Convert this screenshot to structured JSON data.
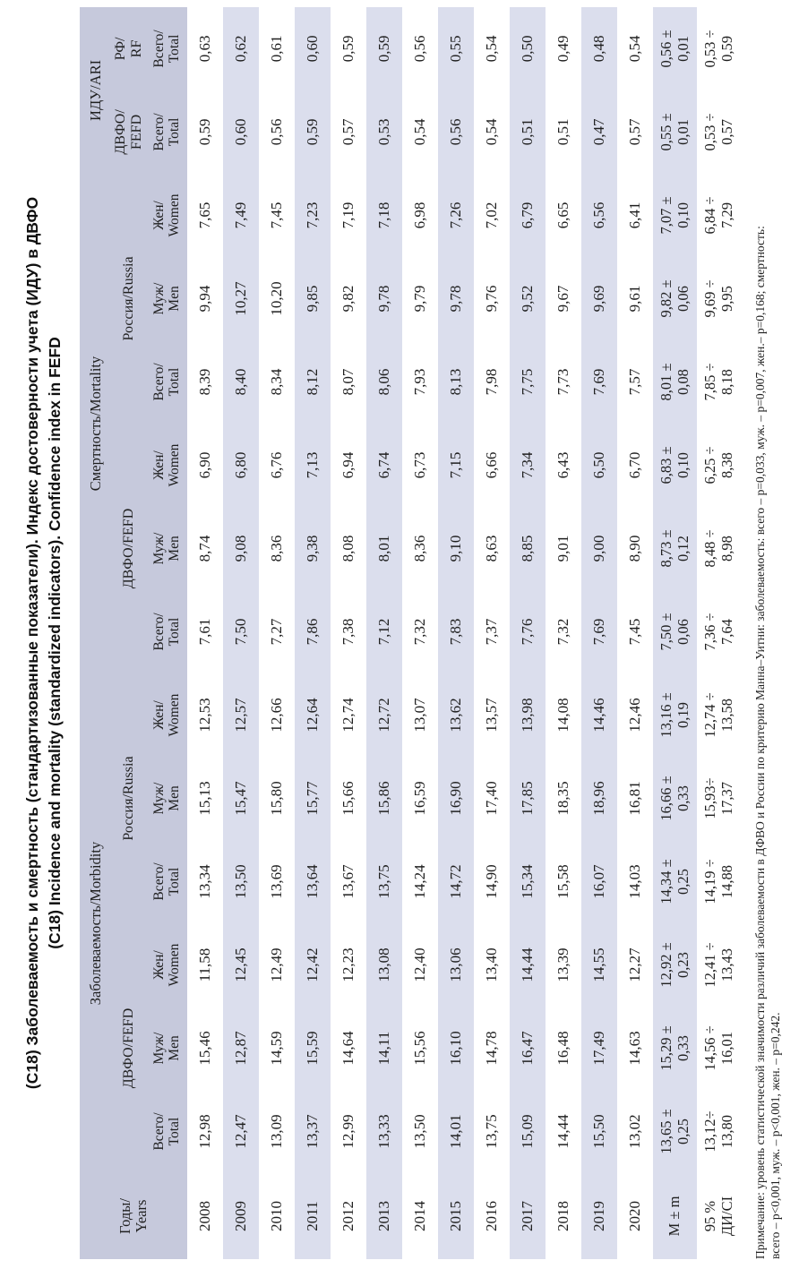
{
  "title": {
    "line1": "(С18) Заболеваемость и смертность (стандартизованные показатели). Индекс достоверности учета (ИДУ) в ДВФО",
    "line2": "(C18) Incidence and mortality (standardized indicators). Confidence index in FEFD"
  },
  "colors": {
    "header_bg": "#c6c9dc",
    "stripe_bg": "#dbdeed",
    "text": "#1f1f1f"
  },
  "table": {
    "years_header": [
      "Годы/",
      "Years"
    ],
    "groups": {
      "morbidity": "Заболеваемость/Morbidity",
      "mortality": "Смертность/Mortality",
      "ari": "ИДУ/ARI"
    },
    "regions": {
      "fefd": "ДВФО/FEFD",
      "russia": "Россия/Russia",
      "fefd_2l": [
        "ДВФО/",
        "FEFD"
      ],
      "rf_2l": [
        "РФ/",
        "RF"
      ]
    },
    "subs": {
      "total": [
        "Всего/",
        "Total"
      ],
      "men": [
        "Муж/",
        "Men"
      ],
      "women": [
        "Жен/",
        "Women"
      ]
    },
    "sub_order": [
      "total",
      "men",
      "women",
      "total",
      "men",
      "women",
      "total",
      "men",
      "women",
      "total",
      "men",
      "women",
      "total",
      "total"
    ],
    "rows": [
      {
        "year": "2008",
        "values": [
          "12,98",
          "15,46",
          "11,58",
          "13,34",
          "15,13",
          "12,53",
          "7,61",
          "8,74",
          "6,90",
          "8,39",
          "9,94",
          "7,65",
          "0,59",
          "0,63"
        ]
      },
      {
        "year": "2009",
        "values": [
          "12,47",
          "12,87",
          "12,45",
          "13,50",
          "15,47",
          "12,57",
          "7,50",
          "9,08",
          "6,80",
          "8,40",
          "10,27",
          "7,49",
          "0,60",
          "0,62"
        ]
      },
      {
        "year": "2010",
        "values": [
          "13,09",
          "14,59",
          "12,49",
          "13,69",
          "15,80",
          "12,66",
          "7,27",
          "8,36",
          "6,76",
          "8,34",
          "10,20",
          "7,45",
          "0,56",
          "0,61"
        ]
      },
      {
        "year": "2011",
        "values": [
          "13,37",
          "15,59",
          "12,42",
          "13,64",
          "15,77",
          "12,64",
          "7,86",
          "9,38",
          "7,13",
          "8,12",
          "9,85",
          "7,23",
          "0,59",
          "0,60"
        ]
      },
      {
        "year": "2012",
        "values": [
          "12,99",
          "14,64",
          "12,23",
          "13,67",
          "15,66",
          "12,74",
          "7,38",
          "8,08",
          "6,94",
          "8,07",
          "9,82",
          "7,19",
          "0,57",
          "0,59"
        ]
      },
      {
        "year": "2013",
        "values": [
          "13,33",
          "14,11",
          "13,08",
          "13,75",
          "15,86",
          "12,72",
          "7,12",
          "8,01",
          "6,74",
          "8,06",
          "9,78",
          "7,18",
          "0,53",
          "0,59"
        ]
      },
      {
        "year": "2014",
        "values": [
          "13,50",
          "15,56",
          "12,40",
          "14,24",
          "16,59",
          "13,07",
          "7,32",
          "8,36",
          "6,73",
          "7,93",
          "9,79",
          "6,98",
          "0,54",
          "0,56"
        ]
      },
      {
        "year": "2015",
        "values": [
          "14,01",
          "16,10",
          "13,06",
          "14,72",
          "16,90",
          "13,62",
          "7,83",
          "9,10",
          "7,15",
          "8,13",
          "9,78",
          "7,26",
          "0,56",
          "0,55"
        ]
      },
      {
        "year": "2016",
        "values": [
          "13,75",
          "14,78",
          "13,40",
          "14,90",
          "17,40",
          "13,57",
          "7,37",
          "8,63",
          "6,66",
          "7,98",
          "9,76",
          "7,02",
          "0,54",
          "0,54"
        ]
      },
      {
        "year": "2017",
        "values": [
          "15,09",
          "16,47",
          "14,44",
          "15,34",
          "17,85",
          "13,98",
          "7,76",
          "8,85",
          "7,34",
          "7,75",
          "9,52",
          "6,79",
          "0,51",
          "0,50"
        ]
      },
      {
        "year": "2018",
        "values": [
          "14,44",
          "16,48",
          "13,39",
          "15,58",
          "18,35",
          "14,08",
          "7,32",
          "9,01",
          "6,43",
          "7,73",
          "9,67",
          "6,65",
          "0,51",
          "0,49"
        ]
      },
      {
        "year": "2019",
        "values": [
          "15,50",
          "17,49",
          "14,55",
          "16,07",
          "18,96",
          "14,46",
          "7,69",
          "9,00",
          "6,50",
          "7,69",
          "9,69",
          "6,56",
          "0,47",
          "0,48"
        ]
      },
      {
        "year": "2020",
        "values": [
          "13,02",
          "14,63",
          "12,27",
          "14,03",
          "16,81",
          "12,46",
          "7,45",
          "8,90",
          "6,70",
          "7,57",
          "9,61",
          "6,41",
          "0,57",
          "0,54"
        ]
      }
    ],
    "m_row": {
      "label": [
        "М ± m",
        ""
      ],
      "values": [
        [
          "13,65 ±",
          "0,25"
        ],
        [
          "15,29 ±",
          "0,33"
        ],
        [
          "12,92 ±",
          "0,23"
        ],
        [
          "14,34 ±",
          "0,25"
        ],
        [
          "16,66 ±",
          "0,33"
        ],
        [
          "13,16 ±",
          "0,19"
        ],
        [
          "7,50 ±",
          "0,06"
        ],
        [
          "8,73 ±",
          "0,12"
        ],
        [
          "6,83 ±",
          "0,10"
        ],
        [
          "8,01 ±",
          "0,08"
        ],
        [
          "9,82 ±",
          "0,06"
        ],
        [
          "7,07 ±",
          "0,10"
        ],
        [
          "0,55 ±",
          "0,01"
        ],
        [
          "0,56 ±",
          "0,01"
        ]
      ]
    },
    "ci_row": {
      "label": [
        "95 %",
        "ДИ/CI"
      ],
      "values": [
        [
          "13,12÷",
          "13,80"
        ],
        [
          "14,56 ÷",
          "16,01"
        ],
        [
          "12,41 ÷",
          "13,43"
        ],
        [
          "14,19 ÷",
          "14,88"
        ],
        [
          "15,93÷",
          "17,37"
        ],
        [
          "12,74 ÷",
          "13,58"
        ],
        [
          "7,36 ÷",
          "7,64"
        ],
        [
          "8,48 ÷",
          "8,98"
        ],
        [
          "6,25 ÷",
          "8,38"
        ],
        [
          "7,85 ÷",
          "8,18"
        ],
        [
          "9,69 ÷",
          "9,95"
        ],
        [
          "6,84 ÷",
          "7,29"
        ],
        [
          "0,53 ÷",
          "0,57"
        ],
        [
          "0,53 ÷",
          "0,59"
        ]
      ]
    }
  },
  "note": {
    "line1": "Примечание:  уровень статистической значимости различий заболеваемости в ДФВО и России по критерию Манна–Уитни: заболеваемость: всего – р=0,033, муж. – р=0,007, жен.– р=0,168; смертность:",
    "line2": "всего – р<0,001, муж. – р<0,001, жен. – р=0,242."
  }
}
